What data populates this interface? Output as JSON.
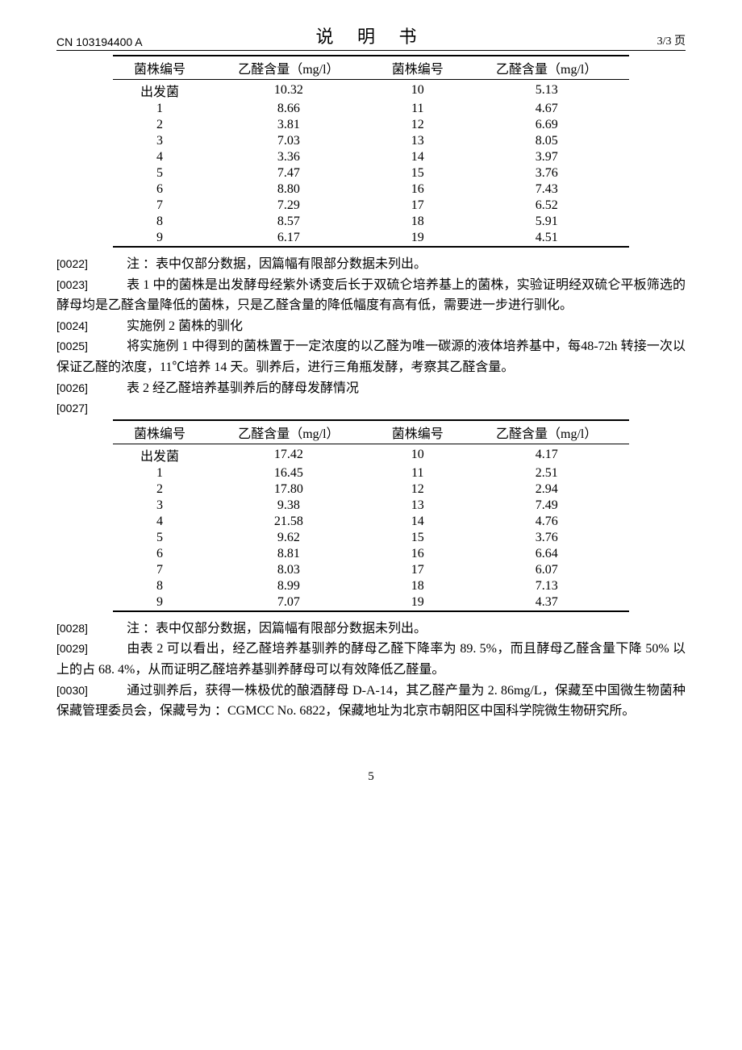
{
  "header": {
    "doc_number": "CN 103194400 A",
    "doc_title": "说 明 书",
    "page_info": "3/3 页"
  },
  "table1": {
    "columns": [
      "菌株编号",
      "乙醛含量（mg/l）",
      "菌株编号",
      "乙醛含量（mg/l）"
    ],
    "rows": [
      [
        "出发菌",
        "10.32",
        "10",
        "5.13"
      ],
      [
        "1",
        "8.66",
        "11",
        "4.67"
      ],
      [
        "2",
        "3.81",
        "12",
        "6.69"
      ],
      [
        "3",
        "7.03",
        "13",
        "8.05"
      ],
      [
        "4",
        "3.36",
        "14",
        "3.97"
      ],
      [
        "5",
        "7.47",
        "15",
        "3.76"
      ],
      [
        "6",
        "8.80",
        "16",
        "7.43"
      ],
      [
        "7",
        "7.29",
        "17",
        "6.52"
      ],
      [
        "8",
        "8.57",
        "18",
        "5.91"
      ],
      [
        "9",
        "6.17",
        "19",
        "4.51"
      ]
    ]
  },
  "para0022": {
    "num": "[0022]",
    "text": "注 ：表中仅部分数据，因篇幅有限部分数据未列出。"
  },
  "para0023": {
    "num": "[0023]",
    "text": "表 1 中的菌株是出发酵母经紫外诱变后长于双硫仑培养基上的菌株，实验证明经双硫仑平板筛选的酵母均是乙醛含量降低的菌株，只是乙醛含量的降低幅度有高有低，需要进一步进行驯化。"
  },
  "para0024": {
    "num": "[0024]",
    "text": "实施例 2 菌株的驯化"
  },
  "para0025": {
    "num": "[0025]",
    "text": "将实施例 1 中得到的菌株置于一定浓度的以乙醛为唯一碳源的液体培养基中，每48-72h 转接一次以保证乙醛的浓度，11℃培养 14 天。驯养后，进行三角瓶发酵，考察其乙醛含量。"
  },
  "para0026": {
    "num": "[0026]",
    "text": "表 2 经乙醛培养基驯养后的酵母发酵情况"
  },
  "para0027": {
    "num": "[0027]"
  },
  "table2": {
    "columns": [
      "菌株编号",
      "乙醛含量（mg/l）",
      "菌株编号",
      "乙醛含量（mg/l）"
    ],
    "rows": [
      [
        "出发菌",
        "17.42",
        "10",
        "4.17"
      ],
      [
        "1",
        "16.45",
        "11",
        "2.51"
      ],
      [
        "2",
        "17.80",
        "12",
        "2.94"
      ],
      [
        "3",
        "9.38",
        "13",
        "7.49"
      ],
      [
        "4",
        "21.58",
        "14",
        "4.76"
      ],
      [
        "5",
        "9.62",
        "15",
        "3.76"
      ],
      [
        "6",
        "8.81",
        "16",
        "6.64"
      ],
      [
        "7",
        "8.03",
        "17",
        "6.07"
      ],
      [
        "8",
        "8.99",
        "18",
        "7.13"
      ],
      [
        "9",
        "7.07",
        "19",
        "4.37"
      ]
    ]
  },
  "para0028": {
    "num": "[0028]",
    "text": "注 ：表中仅部分数据，因篇幅有限部分数据未列出。"
  },
  "para0029": {
    "num": "[0029]",
    "text": "由表 2 可以看出，经乙醛培养基驯养的酵母乙醛下降率为 89. 5%，而且酵母乙醛含量下降 50% 以上的占 68. 4%，从而证明乙醛培养基驯养酵母可以有效降低乙醛量。"
  },
  "para0030": {
    "num": "[0030]",
    "text": "通过驯养后，获得一株极优的酿酒酵母 D-A-14，其乙醛产量为 2. 86mg/L，保藏至中国微生物菌种保藏管理委员会，保藏号为 ：CGMCC  No. 6822，保藏地址为北京市朝阳区中国科学院微生物研究所。"
  },
  "page_number": "5"
}
